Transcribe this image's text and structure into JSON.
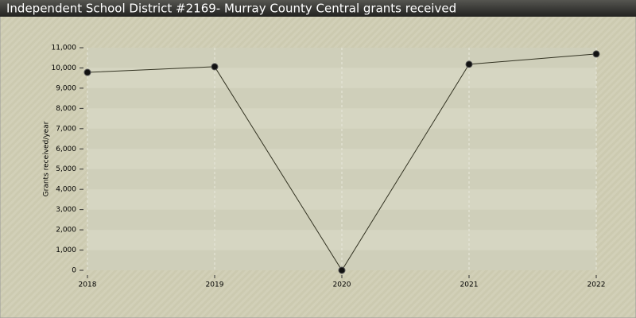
{
  "chart_data": {
    "type": "line",
    "title": "Independent School District #2169- Murray County Central grants received",
    "y_label": "Grants received/year",
    "x": [
      2018,
      2019,
      2020,
      2021,
      2022
    ],
    "series": [
      {
        "name": "Grants received",
        "color": "#333322",
        "values": [
          9780,
          10060,
          0,
          10180,
          10690
        ]
      }
    ],
    "xlim": [
      2018,
      2022
    ],
    "xticks": [
      2018,
      2019,
      2020,
      2021,
      2022
    ],
    "ylim": [
      0,
      11000
    ],
    "yticks": [
      0,
      {
        "value": 1000,
        "label": "1,000"
      },
      {
        "value": 2000,
        "label": "2,000"
      },
      {
        "value": 3000,
        "label": "3,000"
      },
      {
        "value": 4000,
        "label": "4,000"
      },
      {
        "value": 5000,
        "label": "5,000"
      },
      {
        "value": 6000,
        "label": "6,000"
      },
      {
        "value": 7000,
        "label": "7,000"
      },
      {
        "value": 8000,
        "label": "8,000"
      },
      {
        "value": 9000,
        "label": "9,000"
      },
      {
        "value": 10000,
        "label": "10,000"
      },
      {
        "value": 11000,
        "label": "11,000"
      }
    ],
    "grid": true
  }
}
